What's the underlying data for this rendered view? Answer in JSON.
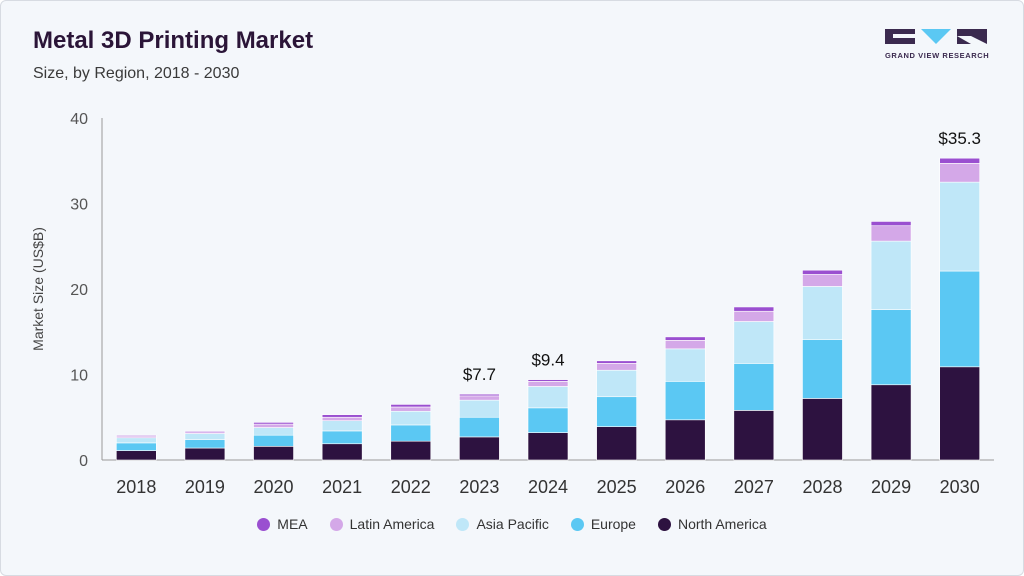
{
  "header": {
    "title": "Metal 3D Printing Market",
    "subtitle": "Size, by Region, 2018 - 2030"
  },
  "logo": {
    "text": "GRAND VIEW RESEARCH"
  },
  "chart_data": {
    "type": "bar",
    "stacked": true,
    "title": "Metal 3D Printing Market",
    "subtitle": "Size, by Region, 2018 - 2030",
    "xlabel": "",
    "ylabel": "Market Size (US$B)",
    "ylim": [
      0,
      40
    ],
    "yticks": [
      0,
      10,
      20,
      30,
      40
    ],
    "grid": false,
    "legend_position": "bottom",
    "categories": [
      "2018",
      "2019",
      "2020",
      "2021",
      "2022",
      "2023",
      "2024",
      "2025",
      "2026",
      "2027",
      "2028",
      "2029",
      "2030"
    ],
    "series": [
      {
        "name": "North America",
        "color": "#2d1240",
        "values": [
          1.1,
          1.4,
          1.6,
          1.9,
          2.2,
          2.7,
          3.2,
          3.9,
          4.7,
          5.8,
          7.2,
          8.8,
          10.9
        ]
      },
      {
        "name": "Europe",
        "color": "#5bc8f3",
        "values": [
          0.9,
          1.0,
          1.3,
          1.5,
          1.9,
          2.3,
          2.9,
          3.5,
          4.5,
          5.5,
          6.9,
          8.8,
          11.2
        ]
      },
      {
        "name": "Asia Pacific",
        "color": "#bfe7f8",
        "values": [
          0.6,
          0.7,
          0.9,
          1.2,
          1.6,
          2.0,
          2.5,
          3.1,
          3.8,
          4.9,
          6.2,
          8.0,
          10.4
        ]
      },
      {
        "name": "Latin America",
        "color": "#d4a8e8",
        "values": [
          0.2,
          0.2,
          0.4,
          0.4,
          0.5,
          0.5,
          0.6,
          0.8,
          1.0,
          1.2,
          1.4,
          1.8,
          2.2
        ]
      },
      {
        "name": "MEA",
        "color": "#9a4fd0",
        "values": [
          0.1,
          0.1,
          0.2,
          0.3,
          0.3,
          0.2,
          0.2,
          0.3,
          0.4,
          0.5,
          0.5,
          0.5,
          0.6
        ]
      }
    ],
    "annotations": [
      {
        "category": "2023",
        "label": "$7.7"
      },
      {
        "category": "2024",
        "label": "$9.4"
      },
      {
        "category": "2030",
        "label": "$35.3"
      }
    ]
  },
  "legend": {
    "items": [
      {
        "label": "MEA",
        "color": "#9a4fd0"
      },
      {
        "label": "Latin America",
        "color": "#d4a8e8"
      },
      {
        "label": "Asia Pacific",
        "color": "#bfe7f8"
      },
      {
        "label": "Europe",
        "color": "#5bc8f3"
      },
      {
        "label": "North America",
        "color": "#2d1240"
      }
    ]
  }
}
